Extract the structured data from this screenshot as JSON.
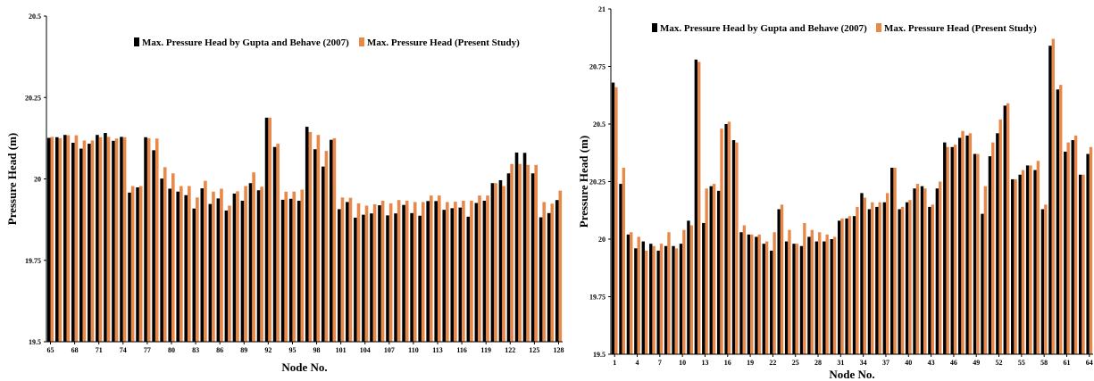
{
  "colors": {
    "series1": "#000000",
    "series2": "#e8894a"
  },
  "chart_data": [
    {
      "type": "bar",
      "xlabel": "Node No.",
      "ylabel": "Pressure Head (m)",
      "ylim": [
        19.5,
        20.5
      ],
      "yticks": [
        "19.5",
        "19.75",
        "20",
        "20.25",
        "20.5"
      ],
      "grid": false,
      "legend": "top-right",
      "x": [
        65,
        66,
        67,
        68,
        69,
        70,
        71,
        72,
        73,
        74,
        75,
        76,
        77,
        78,
        79,
        80,
        81,
        82,
        83,
        84,
        85,
        86,
        87,
        88,
        89,
        90,
        91,
        92,
        93,
        94,
        95,
        96,
        97,
        98,
        99,
        100,
        101,
        102,
        103,
        104,
        105,
        106,
        107,
        108,
        109,
        110,
        111,
        112,
        113,
        114,
        115,
        116,
        117,
        118,
        119,
        120,
        121,
        122,
        123,
        124,
        125,
        126,
        127,
        128
      ],
      "xtick_labels": [
        "65",
        "68",
        "71",
        "74",
        "77",
        "80",
        "83",
        "86",
        "89",
        "92",
        "95",
        "98",
        "101",
        "104",
        "107",
        "110",
        "113",
        "116",
        "119",
        "122",
        "125",
        "128"
      ],
      "series": [
        {
          "name": "Max. Pressure Head by Gupta and Behave (2007)",
          "values": [
            20.126,
            20.128,
            20.135,
            20.111,
            20.093,
            20.108,
            20.135,
            20.141,
            20.117,
            20.129,
            19.958,
            19.974,
            20.128,
            20.088,
            20.001,
            19.97,
            19.961,
            19.95,
            19.909,
            19.971,
            19.923,
            19.94,
            19.903,
            19.955,
            19.933,
            19.987,
            19.965,
            20.188,
            20.098,
            19.936,
            19.939,
            19.933,
            20.16,
            20.091,
            20.038,
            20.12,
            19.907,
            19.929,
            19.881,
            19.89,
            19.894,
            19.919,
            19.888,
            19.894,
            19.92,
            19.895,
            19.887,
            19.932,
            19.932,
            19.905,
            19.91,
            19.912,
            19.884,
            19.926,
            19.933,
            19.987,
            19.996,
            20.017,
            20.081,
            20.08,
            20.017,
            19.882,
            19.895,
            19.935
          ]
        },
        {
          "name": "Max. Pressure Head (Present Study)",
          "values": [
            20.129,
            20.125,
            20.134,
            20.134,
            20.118,
            20.118,
            20.128,
            20.129,
            20.124,
            20.128,
            19.978,
            19.978,
            20.125,
            20.124,
            20.036,
            20.017,
            19.978,
            19.978,
            19.943,
            19.994,
            19.961,
            19.97,
            19.918,
            19.962,
            19.978,
            20.02,
            19.976,
            20.188,
            20.108,
            19.961,
            19.961,
            19.967,
            20.144,
            20.135,
            20.086,
            20.125,
            19.943,
            19.942,
            19.925,
            19.918,
            19.922,
            19.933,
            19.925,
            19.935,
            19.933,
            19.929,
            19.929,
            19.949,
            19.949,
            19.929,
            19.93,
            19.933,
            19.933,
            19.949,
            19.949,
            19.987,
            19.978,
            20.046,
            20.046,
            20.043,
            20.043,
            19.929,
            19.924,
            19.964
          ]
        }
      ]
    },
    {
      "type": "bar",
      "xlabel": "Node No.",
      "ylabel": "Pressure Head (m)",
      "ylim": [
        19.5,
        21.0
      ],
      "yticks": [
        "19.5",
        "19.75",
        "20",
        "20.25",
        "20.5",
        "20.75",
        "21"
      ],
      "grid": false,
      "legend": "top",
      "x": [
        1,
        2,
        3,
        4,
        5,
        6,
        7,
        8,
        9,
        10,
        11,
        12,
        13,
        14,
        15,
        16,
        17,
        18,
        19,
        20,
        21,
        22,
        23,
        24,
        25,
        26,
        27,
        28,
        29,
        30,
        31,
        32,
        33,
        34,
        35,
        36,
        37,
        38,
        39,
        40,
        41,
        42,
        43,
        44,
        45,
        46,
        47,
        48,
        49,
        50,
        51,
        52,
        53,
        54,
        55,
        56,
        57,
        58,
        59,
        60,
        61,
        62,
        63,
        64
      ],
      "xtick_labels": [
        "1",
        "4",
        "7",
        "10",
        "13",
        "16",
        "19",
        "22",
        "25",
        "28",
        "31",
        "34",
        "37",
        "40",
        "43",
        "46",
        "49",
        "52",
        "55",
        "58",
        "61",
        "64"
      ],
      "series": [
        {
          "name": "Max. Pressure Head by Gupta and Behave (2007)",
          "values": [
            20.68,
            20.24,
            20.02,
            19.96,
            19.99,
            19.98,
            19.95,
            19.97,
            19.97,
            19.98,
            20.08,
            20.78,
            20.07,
            20.23,
            20.21,
            20.5,
            20.43,
            20.03,
            20.02,
            20.01,
            19.98,
            19.95,
            20.13,
            19.99,
            19.98,
            19.97,
            20.01,
            19.99,
            19.99,
            20.0,
            20.08,
            20.09,
            20.1,
            20.2,
            20.13,
            20.14,
            20.16,
            20.31,
            20.13,
            20.16,
            20.22,
            20.23,
            20.14,
            20.22,
            20.42,
            20.4,
            20.44,
            20.45,
            20.37,
            20.11,
            20.36,
            20.46,
            20.58,
            20.26,
            20.28,
            20.32,
            20.3,
            20.13,
            20.84,
            20.65,
            20.38,
            20.43,
            20.28,
            20.37
          ]
        },
        {
          "name": "Max. Pressure Head (Present Study)",
          "values": [
            20.66,
            20.31,
            20.03,
            20.01,
            19.95,
            19.97,
            19.98,
            20.03,
            19.96,
            20.04,
            20.06,
            20.77,
            20.22,
            20.24,
            20.48,
            20.51,
            20.42,
            20.06,
            20.02,
            20.02,
            19.99,
            20.03,
            20.15,
            20.04,
            19.98,
            20.07,
            20.04,
            20.03,
            20.02,
            20.01,
            20.09,
            20.1,
            20.14,
            20.18,
            20.16,
            20.16,
            20.2,
            20.31,
            20.14,
            20.17,
            20.24,
            20.22,
            20.15,
            20.25,
            20.4,
            20.41,
            20.47,
            20.46,
            20.37,
            20.23,
            20.42,
            20.52,
            20.59,
            20.26,
            20.3,
            20.32,
            20.34,
            20.15,
            20.87,
            20.67,
            20.42,
            20.45,
            20.28,
            20.4
          ]
        }
      ]
    }
  ]
}
